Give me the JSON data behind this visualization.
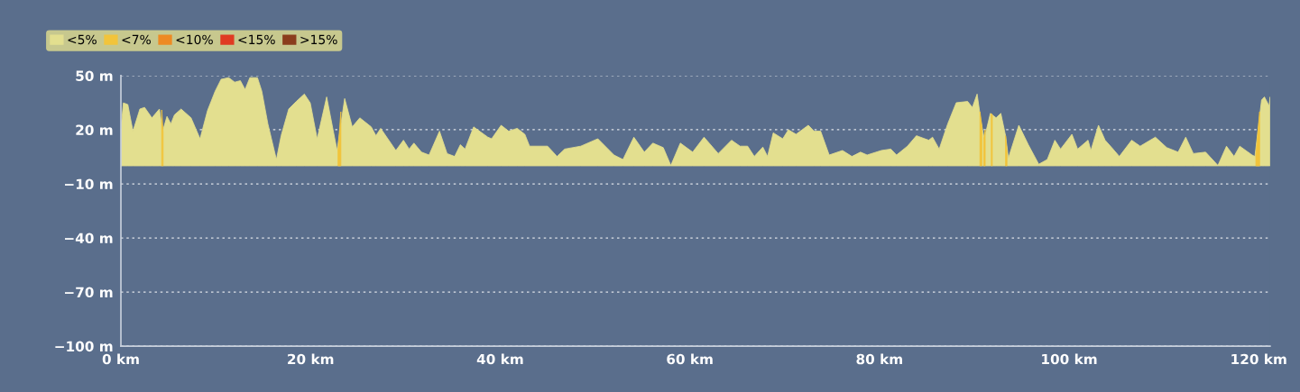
{
  "chart_data": {
    "type": "area",
    "xlim": [
      0,
      121.2
    ],
    "ylim": [
      -100,
      50
    ],
    "xticks": [
      {
        "value": 0,
        "label": "0 km"
      },
      {
        "value": 20,
        "label": "20 km"
      },
      {
        "value": 40,
        "label": "40 km"
      },
      {
        "value": 60,
        "label": "60 km"
      },
      {
        "value": 80,
        "label": "80 km"
      },
      {
        "value": 100,
        "label": "100 km"
      },
      {
        "value": 120,
        "label": "120 km"
      }
    ],
    "yticks": [
      {
        "value": -100,
        "label": "−100 m"
      },
      {
        "value": -70,
        "label": "−70 m"
      },
      {
        "value": -40,
        "label": "−40 m"
      },
      {
        "value": -10,
        "label": "−10 m"
      },
      {
        "value": 20,
        "label": "20 m"
      },
      {
        "value": 50,
        "label": "50 m"
      }
    ],
    "grid": "y",
    "legend": "top left",
    "series": [
      {
        "name": "<5%",
        "color": "#e3df8f",
        "x": [
          0,
          0.26,
          0.73,
          1.27,
          2.0,
          2.5,
          3.27,
          4.06,
          4.4,
          4.86,
          5.27,
          5.65,
          6.35,
          7.4,
          8.35,
          9.14,
          9.94,
          10.57,
          11.37,
          12,
          12.6,
          13.1,
          13.6,
          14.4,
          14.86,
          15.5,
          16.4,
          16.9,
          17.7,
          18.5,
          19.35,
          19.97,
          20.7,
          21.7,
          22.8,
          23.6,
          24.4,
          25.2,
          26.4,
          26.9,
          27.4,
          29.0,
          29.8,
          30.4,
          30.9,
          31.7,
          32.5,
          33.6,
          34.4,
          35.2,
          35.8,
          36.3,
          37.2,
          38.7,
          39.1,
          40.1,
          40.9,
          41.8,
          42.6,
          43.1,
          45.0,
          46.0,
          46.8,
          48.5,
          50.3,
          52.0,
          52.95,
          54.1,
          55.2,
          56.1,
          57.2,
          58.0,
          59.0,
          60.3,
          61.5,
          63.0,
          64.4,
          65.3,
          66.1,
          66.8,
          67.7,
          68.2,
          68.8,
          69.8,
          70.4,
          71.2,
          72.5,
          73.1,
          73.8,
          74.7,
          76.1,
          77.1,
          78.0,
          78.7,
          80.2,
          81.2,
          81.8,
          82.95,
          83.9,
          85.2,
          85.6,
          86.3,
          87.2,
          88.1,
          89.3,
          89.8,
          90.3,
          90.7,
          91.05,
          91.7,
          92.3,
          92.8,
          93.3,
          93.6,
          94.7,
          95.7,
          96.8,
          97.7,
          98.5,
          99.1,
          100.3,
          100.9,
          102.0,
          102.3,
          103.1,
          103.8,
          104.5,
          105.3,
          106.6,
          107.5,
          109.1,
          110.3,
          111.5,
          112.3,
          113.1,
          114.4,
          115.7,
          116.6,
          117.4,
          118.0,
          119.3,
          119.6,
          120.3,
          120.6,
          121.1,
          121.2
        ],
        "values": [
          20,
          34.9,
          34,
          19.2,
          31.5,
          32.4,
          26.6,
          31.5,
          19.2,
          27.4,
          23.3,
          28.3,
          31.5,
          26.6,
          15,
          30.7,
          41.4,
          48,
          48.9,
          46.4,
          47.2,
          42.3,
          48.9,
          48.9,
          41.4,
          23.3,
          3.5,
          16.7,
          31.5,
          35.7,
          39.8,
          34.9,
          15,
          38.2,
          8.5,
          37.3,
          21.6,
          26.6,
          21.6,
          16.7,
          20.8,
          8.5,
          14.2,
          9.3,
          12.6,
          7.6,
          6.0,
          19.2,
          6.8,
          5.2,
          11.7,
          9.3,
          21.6,
          15.9,
          15,
          22.5,
          19.2,
          20.8,
          17.5,
          10.9,
          10.9,
          5.2,
          9.3,
          10.9,
          15,
          6.0,
          3.5,
          15.9,
          7.6,
          12.6,
          10.1,
          0.2,
          12.6,
          7.6,
          15.9,
          6.8,
          14.2,
          10.9,
          10.9,
          5.2,
          10.4,
          5.2,
          18.3,
          15,
          20,
          17.5,
          22.5,
          19.2,
          19.2,
          6.0,
          8.5,
          5.2,
          7.6,
          6.0,
          8.5,
          9.3,
          6.0,
          10.9,
          16.7,
          14.2,
          15.9,
          9.3,
          23.3,
          35,
          35.7,
          32.4,
          39.8,
          25,
          15,
          29.1,
          26.6,
          29.1,
          16.7,
          4.3,
          22.5,
          11.7,
          0.9,
          3.5,
          14.2,
          9.3,
          17.5,
          9.3,
          14.2,
          8.5,
          22.5,
          14.2,
          10.1,
          5.2,
          14.2,
          10.9,
          15.9,
          10.1,
          7.6,
          15.9,
          6.8,
          7.6,
          0.2,
          10.9,
          5.2,
          10.9,
          6.0,
          5.2,
          36.5,
          38.2,
          33.2,
          38.2
        ]
      },
      {
        "name": "<7%",
        "color": "#f2c43b",
        "x": [
          4.3,
          4.45,
          4.5,
          22.9,
          23.2,
          23.3,
          90.6,
          90.8,
          90.9,
          91.0,
          91.15,
          91.2,
          91.8,
          91.9,
          92.0,
          93.3,
          93.45,
          93.5,
          119.7,
          120.1
        ],
        "values": [
          31,
          19,
          null,
          8.5,
          30,
          null,
          30,
          22,
          null,
          15,
          20,
          null,
          29,
          28,
          null,
          16.7,
          8,
          null,
          6,
          30
        ]
      },
      {
        "name": "<10%",
        "color": "#ee8a23"
      },
      {
        "name": "<15%",
        "color": "#e03a22"
      },
      {
        "name": ">15%",
        "color": "#8b3d1c"
      }
    ]
  }
}
